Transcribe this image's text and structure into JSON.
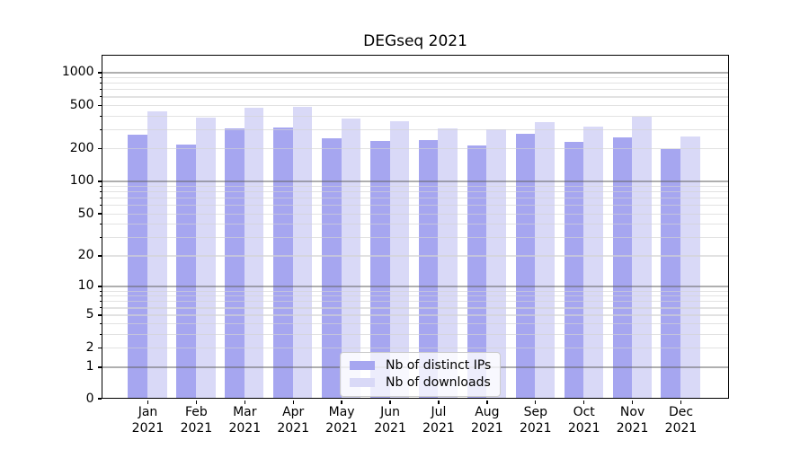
{
  "title": "DEGseq 2021",
  "chart_data": {
    "type": "bar",
    "title": "DEGseq 2021",
    "categories": [
      "Jan 2021",
      "Feb 2021",
      "Mar 2021",
      "Apr 2021",
      "May 2021",
      "Jun 2021",
      "Jul 2021",
      "Aug 2021",
      "Sep 2021",
      "Oct 2021",
      "Nov 2021",
      "Dec 2021"
    ],
    "series": [
      {
        "name": "Nb of distinct IPs",
        "color": "#a6a6f0",
        "values": [
          263,
          216,
          302,
          306,
          245,
          233,
          237,
          212,
          270,
          226,
          249,
          196
        ]
      },
      {
        "name": "Nb of downloads",
        "color": "#d9d9f7",
        "values": [
          432,
          377,
          468,
          477,
          372,
          352,
          303,
          298,
          345,
          315,
          388,
          257
        ]
      }
    ],
    "xlabel": "",
    "ylabel": "",
    "y_scale": "log10(1+x)",
    "y_ticks": [
      0,
      1,
      2,
      5,
      10,
      20,
      50,
      100,
      200,
      500,
      1000
    ],
    "ylim": [
      0,
      1430
    ],
    "grid": true,
    "legend_position": "lower center"
  }
}
